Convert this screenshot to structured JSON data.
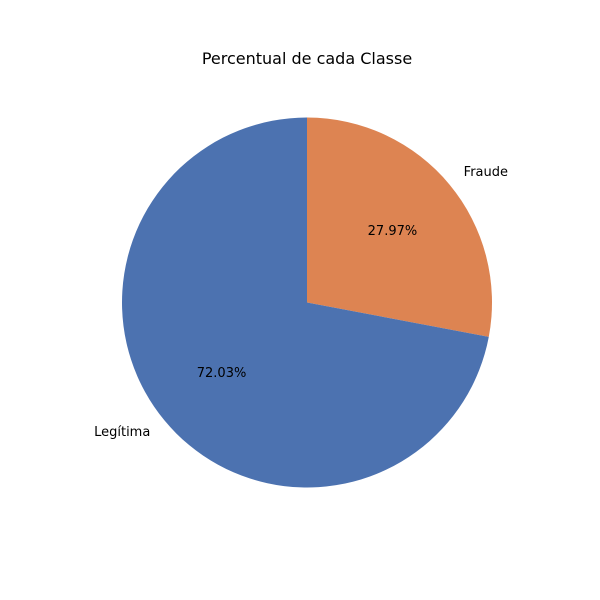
{
  "chart_data": {
    "type": "pie",
    "title": "Percentual de cada Classe",
    "slices": [
      {
        "label": "Fraude",
        "value": 27.97,
        "pct_label": "27.97%",
        "color": "#dd8452"
      },
      {
        "label": "Legítima",
        "value": 72.03,
        "pct_label": "72.03%",
        "color": "#4c72b0"
      }
    ],
    "start_angle_deg": 90,
    "direction": "clockwise",
    "label_position": "outside",
    "pct_position": "inside",
    "legend": "none"
  }
}
